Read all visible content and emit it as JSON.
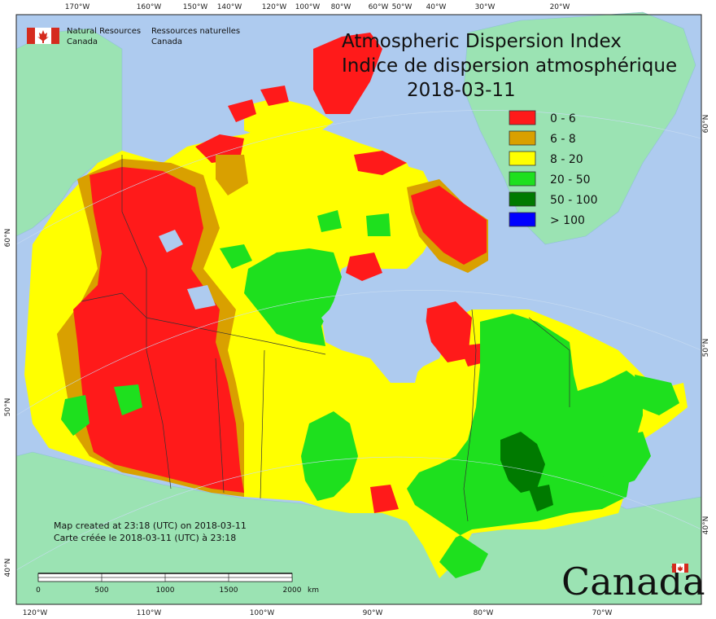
{
  "map": {
    "title_en": "Atmospheric Dispersion Index",
    "title_fr": "Indice de dispersion atmosphérique",
    "date": "2018-03-11",
    "agency": {
      "en_line1": "Natural Resources",
      "en_line2": "Canada",
      "fr_line1": "Ressources naturelles",
      "fr_line2": "Canada"
    },
    "legend": [
      {
        "label": "0 - 6",
        "color": "#ff1a1a"
      },
      {
        "label": "6 - 8",
        "color": "#d9a000"
      },
      {
        "label": "8 - 20",
        "color": "#ffff00"
      },
      {
        "label": "20 - 50",
        "color": "#1ee01e"
      },
      {
        "label": "50 - 100",
        "color": "#007a00"
      },
      {
        "label": "> 100",
        "color": "#0000ff"
      }
    ],
    "credit_en": "Map created at 23:18 (UTC) on 2018-03-11",
    "credit_fr": "Carte créée le 2018-03-11 (UTC) à 23:18",
    "scalebar": {
      "labels": [
        "0",
        "500",
        "1000",
        "1500",
        "2000"
      ],
      "unit": "km"
    },
    "wordmark": "Canada",
    "top_ticks": [
      "170°W",
      "160°W",
      "150°W",
      "140°W",
      "120°W",
      "100°W",
      "80°W",
      "60°W",
      "50°W",
      "40°W",
      "30°W",
      "20°W"
    ],
    "bottom_ticks": [
      "120°W",
      "110°W",
      "100°W",
      "90°W",
      "80°W",
      "70°W"
    ],
    "left_ticks": [
      "60°N",
      "50°N",
      "40°N"
    ],
    "right_ticks": [
      "60°N",
      "50°N",
      "40°N"
    ],
    "colors": {
      "ocean": "#aecbef",
      "land": "#9be3b3",
      "water": "#aecbef"
    }
  }
}
